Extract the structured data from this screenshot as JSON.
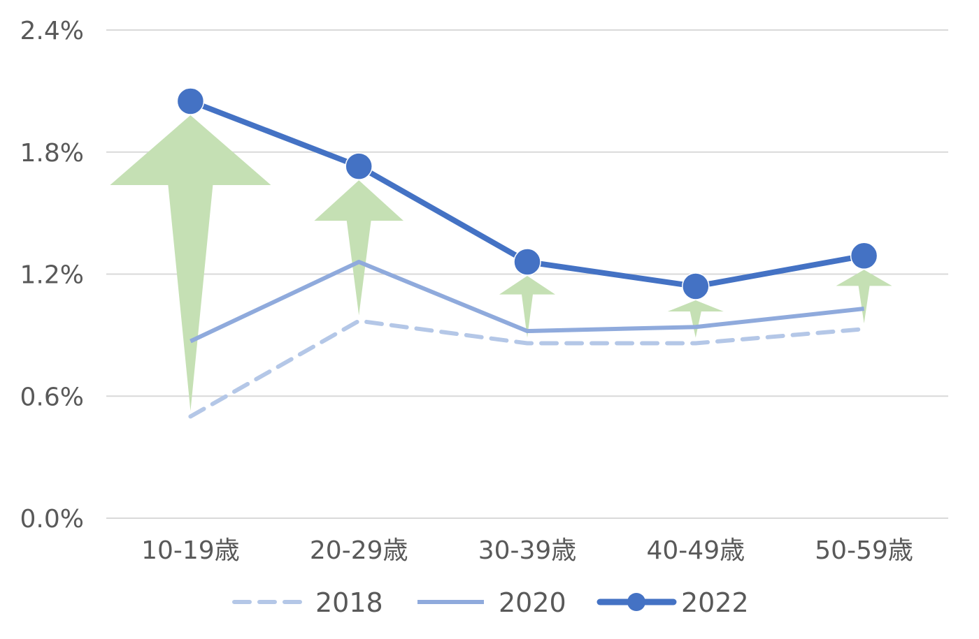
{
  "chart_data": {
    "type": "line",
    "title": "",
    "xlabel": "",
    "ylabel": "",
    "categories": [
      "10-19歳",
      "20-29歳",
      "30-39歳",
      "40-49歳",
      "50-59歳"
    ],
    "y_ticks": [
      "0.0%",
      "0.6%",
      "1.2%",
      "1.8%",
      "2.4%"
    ],
    "ylim": [
      0,
      2.4
    ],
    "grid": true,
    "legend_position": "bottom",
    "series": [
      {
        "name": "2018",
        "values": [
          0.5,
          0.97,
          0.86,
          0.86,
          0.93
        ],
        "color": "#b4c7e7",
        "style": "dashed"
      },
      {
        "name": "2020",
        "values": [
          0.87,
          1.26,
          0.92,
          0.94,
          1.03
        ],
        "color": "#8faadc",
        "style": "solid"
      },
      {
        "name": "2022",
        "values": [
          2.05,
          1.73,
          1.26,
          1.14,
          1.29
        ],
        "color": "#4472c4",
        "style": "solid-markers"
      }
    ],
    "annotations": {
      "type": "increase-arrows",
      "from_series": "2018",
      "to_series": "2022",
      "color": "#c5e0b4"
    }
  }
}
